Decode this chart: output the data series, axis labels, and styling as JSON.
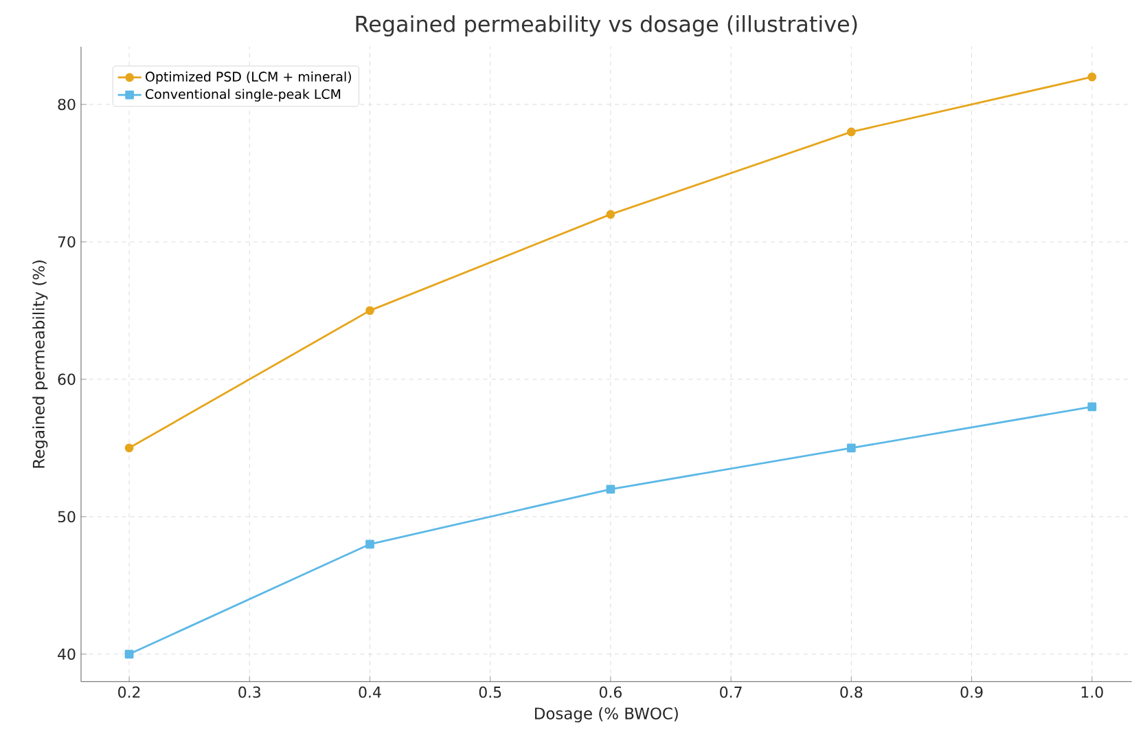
{
  "chart_data": {
    "type": "line",
    "title": "Regained permeability vs dosage (illustrative)",
    "xlabel": "Dosage (% BWOC)",
    "ylabel": "Regained permeability (%)",
    "x": [
      0.2,
      0.4,
      0.6,
      0.8,
      1.0
    ],
    "series": [
      {
        "name": "Optimized PSD (LCM + mineral)",
        "color": "#e6a51c",
        "marker": "circle",
        "values": [
          55,
          65,
          72,
          78,
          82
        ]
      },
      {
        "name": "Conventional single-peak LCM",
        "color": "#5cb8e6",
        "marker": "square",
        "values": [
          40,
          48,
          52,
          55,
          58
        ]
      }
    ],
    "xlim": [
      0.16,
      1.033
    ],
    "ylim": [
      38,
      84.2
    ],
    "xticks": [
      {
        "value": 0.2,
        "label": "0.2"
      },
      {
        "value": 0.3,
        "label": "0.3"
      },
      {
        "value": 0.4,
        "label": "0.4"
      },
      {
        "value": 0.5,
        "label": "0.5"
      },
      {
        "value": 0.6,
        "label": "0.6"
      },
      {
        "value": 0.7,
        "label": "0.7"
      },
      {
        "value": 0.8,
        "label": "0.8"
      },
      {
        "value": 0.9,
        "label": "0.9"
      },
      {
        "value": 1.0,
        "label": "1.0"
      }
    ],
    "yticks": [
      40,
      50,
      60,
      70,
      80
    ],
    "grid": true,
    "legend": "top left",
    "line_style": "solid"
  }
}
